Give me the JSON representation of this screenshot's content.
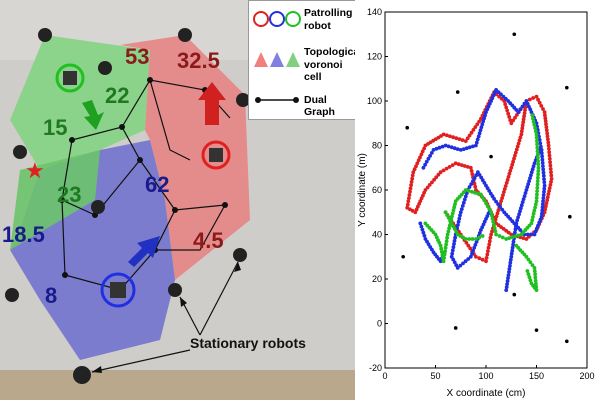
{
  "legend": {
    "robot_label_1": "Patrolling",
    "robot_label_2": "robot",
    "cell_label_1": "Topological",
    "cell_label_2": "voronoi cell",
    "graph_label": "Dual Graph",
    "robot_colors": [
      "#e02020",
      "#2030e0",
      "#20c020"
    ],
    "cell_colors": [
      "#f08080",
      "#8080e0",
      "#80d080"
    ]
  },
  "photo": {
    "cell_values": [
      "53",
      "32.5",
      "15",
      "22",
      "62",
      "23",
      "18.5",
      "4.5",
      "8"
    ],
    "stationary_label": "Stationary robots",
    "cell_colors": {
      "red": "#e88080",
      "green": "#7fd47f",
      "blue": "#6d6dd0"
    },
    "value_colors": {
      "red": "#8b1a1a",
      "green": "#1f7a1f",
      "blue": "#1a1a8a"
    }
  },
  "chart_data": {
    "type": "scatter",
    "xlabel": "X coordinate (cm)",
    "ylabel": "Y coordinate (m)",
    "xlim": [
      0,
      200
    ],
    "ylim": [
      -20,
      140
    ],
    "xticks": [
      0,
      50,
      100,
      150,
      200
    ],
    "yticks": [
      -20,
      0,
      20,
      40,
      60,
      80,
      100,
      120,
      140
    ],
    "stationary_points": [
      [
        128,
        130
      ],
      [
        22,
        88
      ],
      [
        72,
        104
      ],
      [
        180,
        106
      ],
      [
        18,
        30
      ],
      [
        70,
        -2
      ],
      [
        128,
        13
      ],
      [
        180,
        -8
      ],
      [
        183,
        48
      ],
      [
        105,
        75
      ],
      [
        150,
        -3
      ]
    ],
    "series": [
      {
        "name": "red",
        "color": "#e02020",
        "path": [
          [
            22,
            52
          ],
          [
            28,
            68
          ],
          [
            40,
            80
          ],
          [
            58,
            85
          ],
          [
            80,
            82
          ],
          [
            95,
            92
          ],
          [
            108,
            104
          ],
          [
            118,
            100
          ],
          [
            125,
            90
          ],
          [
            140,
            100
          ],
          [
            150,
            102
          ],
          [
            158,
            95
          ],
          [
            162,
            80
          ],
          [
            165,
            65
          ],
          [
            158,
            50
          ],
          [
            150,
            42
          ],
          [
            140,
            38
          ],
          [
            125,
            40
          ],
          [
            110,
            45
          ],
          [
            100,
            55
          ],
          [
            90,
            60
          ],
          [
            85,
            70
          ],
          [
            70,
            72
          ],
          [
            55,
            68
          ],
          [
            40,
            60
          ],
          [
            30,
            50
          ],
          [
            22,
            52
          ]
        ]
      },
      {
        "name": "red",
        "color": "#e02020",
        "path": [
          [
            60,
            50
          ],
          [
            75,
            40
          ],
          [
            90,
            30
          ],
          [
            100,
            28
          ],
          [
            105,
            40
          ],
          [
            115,
            55
          ],
          [
            125,
            70
          ],
          [
            135,
            85
          ],
          [
            140,
            100
          ]
        ]
      },
      {
        "name": "blue",
        "color": "#2030e0",
        "path": [
          [
            38,
            70
          ],
          [
            48,
            78
          ],
          [
            60,
            80
          ],
          [
            75,
            78
          ],
          [
            90,
            80
          ],
          [
            100,
            95
          ],
          [
            110,
            105
          ],
          [
            122,
            100
          ],
          [
            132,
            95
          ],
          [
            140,
            100
          ],
          [
            150,
            90
          ],
          [
            155,
            78
          ],
          [
            158,
            62
          ],
          [
            155,
            48
          ],
          [
            148,
            40
          ],
          [
            138,
            40
          ],
          [
            128,
            45
          ],
          [
            118,
            50
          ],
          [
            108,
            56
          ],
          [
            100,
            62
          ],
          [
            92,
            68
          ],
          [
            82,
            60
          ],
          [
            75,
            50
          ],
          [
            70,
            40
          ],
          [
            66,
            30
          ],
          [
            72,
            25
          ],
          [
            85,
            30
          ],
          [
            95,
            42
          ],
          [
            105,
            52
          ]
        ]
      },
      {
        "name": "blue",
        "color": "#2030e0",
        "path": [
          [
            35,
            45
          ],
          [
            40,
            38
          ],
          [
            48,
            32
          ],
          [
            55,
            28
          ],
          [
            60,
            33
          ]
        ]
      },
      {
        "name": "blue",
        "color": "#2030e0",
        "path": [
          [
            120,
            15
          ],
          [
            125,
            30
          ],
          [
            130,
            45
          ],
          [
            140,
            60
          ],
          [
            148,
            72
          ],
          [
            155,
            80
          ]
        ]
      },
      {
        "name": "green",
        "color": "#20c020",
        "path": [
          [
            40,
            45
          ],
          [
            50,
            40
          ],
          [
            55,
            35
          ],
          [
            58,
            28
          ],
          [
            62,
            40
          ],
          [
            70,
            55
          ],
          [
            80,
            60
          ],
          [
            95,
            58
          ],
          [
            105,
            50
          ],
          [
            110,
            40
          ],
          [
            120,
            38
          ],
          [
            135,
            40
          ],
          [
            145,
            45
          ],
          [
            150,
            55
          ],
          [
            152,
            70
          ],
          [
            150,
            85
          ],
          [
            145,
            95
          ]
        ]
      },
      {
        "name": "green",
        "color": "#20c020",
        "path": [
          [
            130,
            35
          ],
          [
            140,
            30
          ],
          [
            148,
            25
          ],
          [
            150,
            15
          ],
          [
            145,
            18
          ],
          [
            140,
            25
          ]
        ]
      },
      {
        "name": "green",
        "color": "#20c020",
        "path": [
          [
            60,
            50
          ],
          [
            66,
            45
          ],
          [
            72,
            40
          ],
          [
            80,
            38
          ],
          [
            90,
            38
          ],
          [
            100,
            40
          ]
        ]
      }
    ]
  }
}
